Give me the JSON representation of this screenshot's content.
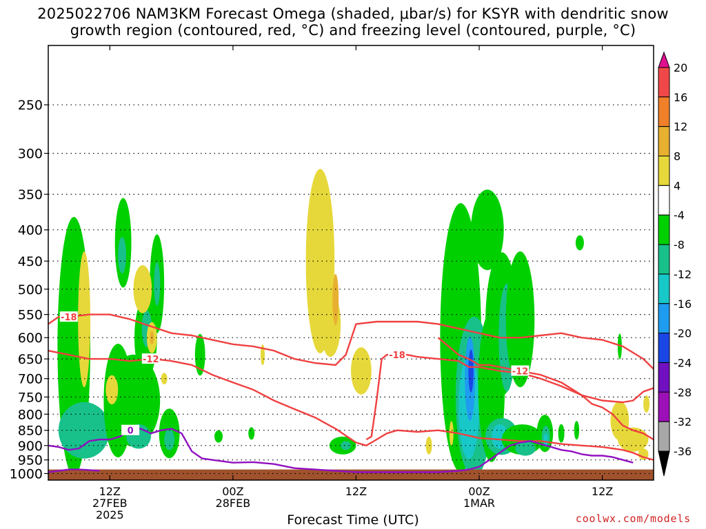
{
  "chart_data": {
    "type": "heatmap",
    "title_line1": "2025022706 NAM3KM Forecast Omega (shaded, μbar/s) for KSYR with dendritic snow",
    "title_line2": "growth region (contoured, red, °C) and freezing level (contoured, purple, °C)",
    "xlabel": "Forecast Time (UTC)",
    "ylabel": "",
    "x_ticks": [
      {
        "hour": 6,
        "lines": [
          "12Z",
          "27FEB",
          "2025"
        ]
      },
      {
        "hour": 18,
        "lines": [
          "00Z",
          "28FEB"
        ]
      },
      {
        "hour": 30,
        "lines": [
          "12Z"
        ]
      },
      {
        "hour": 42,
        "lines": [
          "00Z",
          "1MAR"
        ]
      },
      {
        "hour": 54,
        "lines": [
          "12Z"
        ]
      }
    ],
    "x_range_hours": [
      0,
      59
    ],
    "y_ticks": [
      250,
      300,
      350,
      400,
      450,
      500,
      550,
      600,
      650,
      700,
      750,
      800,
      850,
      900,
      950,
      1000
    ],
    "y_range_hPa": [
      200,
      1025
    ],
    "y_scale": "log-pressure",
    "grid": true,
    "colorbar": {
      "labels": [
        "20",
        "16",
        "12",
        "8",
        "4",
        "-4",
        "-8",
        "-12",
        "-16",
        "-20",
        "-24",
        "-28",
        "-32",
        "-36"
      ],
      "colors": [
        "#e01090",
        "#f04848",
        "#f0802a",
        "#e8b030",
        "#e6d83a",
        "#ffffff",
        "#00d000",
        "#18c08a",
        "#18c8c8",
        "#1e9cf0",
        "#1a46e6",
        "#7010c0",
        "#9c10b8",
        "#a8a8a8",
        "#000000"
      ]
    },
    "omega_blobs": [
      {
        "t": 2.5,
        "p": 620,
        "dt": 1.6,
        "dp": 280,
        "level": 1
      },
      {
        "t": 3.5,
        "p": 850,
        "dt": 2.5,
        "dp": 90,
        "level": 2
      },
      {
        "t": 6.8,
        "p": 760,
        "dt": 1.4,
        "dp": 160,
        "level": 1
      },
      {
        "t": 7.3,
        "p": 420,
        "dt": 0.8,
        "dp": 70,
        "level": 1
      },
      {
        "t": 7.2,
        "p": 440,
        "dt": 0.4,
        "dp": 30,
        "level": 2
      },
      {
        "t": 8.3,
        "p": 760,
        "dt": 2.6,
        "dp": 130,
        "level": 1
      },
      {
        "t": 8.8,
        "p": 870,
        "dt": 1.2,
        "dp": 40,
        "level": 2
      },
      {
        "t": 9.5,
        "p": 600,
        "dt": 1.1,
        "dp": 90,
        "level": 1
      },
      {
        "t": 9.6,
        "p": 580,
        "dt": 0.5,
        "dp": 40,
        "level": 2
      },
      {
        "t": 10.6,
        "p": 490,
        "dt": 0.7,
        "dp": 90,
        "level": 1
      },
      {
        "t": 10.6,
        "p": 490,
        "dt": 0.3,
        "dp": 40,
        "level": 2
      },
      {
        "t": 11.8,
        "p": 860,
        "dt": 1.0,
        "dp": 80,
        "level": 1
      },
      {
        "t": 11.8,
        "p": 880,
        "dt": 0.5,
        "dp": 35,
        "level": 2
      },
      {
        "t": 14.8,
        "p": 640,
        "dt": 0.5,
        "dp": 50,
        "level": 1
      },
      {
        "t": 16.6,
        "p": 870,
        "dt": 0.4,
        "dp": 20,
        "level": 1
      },
      {
        "t": 19.8,
        "p": 860,
        "dt": 0.3,
        "dp": 20,
        "level": 1
      },
      {
        "t": 28.7,
        "p": 900,
        "dt": 1.3,
        "dp": 30,
        "level": 1
      },
      {
        "t": 29.0,
        "p": 900,
        "dt": 0.5,
        "dp": 15,
        "level": 2
      },
      {
        "t": 40.2,
        "p": 600,
        "dt": 2.0,
        "dp": 280,
        "level": 1
      },
      {
        "t": 41.5,
        "p": 750,
        "dt": 1.8,
        "dp": 220,
        "level": 2
      },
      {
        "t": 41.0,
        "p": 780,
        "dt": 1.0,
        "dp": 150,
        "level": 3
      },
      {
        "t": 41.1,
        "p": 700,
        "dt": 0.5,
        "dp": 110,
        "level": 4
      },
      {
        "t": 41.2,
        "p": 680,
        "dt": 0.25,
        "dp": 55,
        "level": 5
      },
      {
        "t": 42.8,
        "p": 400,
        "dt": 1.6,
        "dp": 60,
        "level": 1
      },
      {
        "t": 43.2,
        "p": 720,
        "dt": 1.3,
        "dp": 200,
        "level": 1
      },
      {
        "t": 44.2,
        "p": 570,
        "dt": 1.6,
        "dp": 150,
        "level": 1
      },
      {
        "t": 44.7,
        "p": 600,
        "dt": 0.8,
        "dp": 120,
        "level": 2
      },
      {
        "t": 44.2,
        "p": 870,
        "dt": 1.6,
        "dp": 60,
        "level": 2
      },
      {
        "t": 44.0,
        "p": 870,
        "dt": 0.8,
        "dp": 40,
        "level": 3
      },
      {
        "t": 46.0,
        "p": 560,
        "dt": 1.4,
        "dp": 140,
        "level": 1
      },
      {
        "t": 46.2,
        "p": 880,
        "dt": 2.0,
        "dp": 50,
        "level": 1
      },
      {
        "t": 46.5,
        "p": 910,
        "dt": 1.0,
        "dp": 25,
        "level": 2
      },
      {
        "t": 48.4,
        "p": 860,
        "dt": 0.8,
        "dp": 60,
        "level": 1
      },
      {
        "t": 48.5,
        "p": 870,
        "dt": 0.4,
        "dp": 35,
        "level": 2
      },
      {
        "t": 48.5,
        "p": 880,
        "dt": 0.2,
        "dp": 20,
        "level": 3
      },
      {
        "t": 50.0,
        "p": 860,
        "dt": 0.3,
        "dp": 30,
        "level": 1
      },
      {
        "t": 51.5,
        "p": 850,
        "dt": 0.25,
        "dp": 30,
        "level": 1
      },
      {
        "t": 51.8,
        "p": 420,
        "dt": 0.4,
        "dp": 12,
        "level": 1
      },
      {
        "t": 55.7,
        "p": 620,
        "dt": 0.2,
        "dp": 30,
        "level": 1
      },
      {
        "t": 3.5,
        "p": 560,
        "dt": 0.6,
        "dp": 140,
        "level": -1
      },
      {
        "t": 6.2,
        "p": 730,
        "dt": 0.6,
        "dp": 40,
        "level": -1
      },
      {
        "t": 9.2,
        "p": 500,
        "dt": 0.9,
        "dp": 45,
        "level": -1
      },
      {
        "t": 10.1,
        "p": 600,
        "dt": 0.5,
        "dp": 35,
        "level": -1
      },
      {
        "t": 10.1,
        "p": 600,
        "dt": 0.2,
        "dp": 15,
        "level": -2
      },
      {
        "t": 11.3,
        "p": 700,
        "dt": 0.3,
        "dp": 15,
        "level": -1
      },
      {
        "t": 20.9,
        "p": 640,
        "dt": 0.2,
        "dp": 25,
        "level": -1
      },
      {
        "t": 26.5,
        "p": 450,
        "dt": 1.4,
        "dp": 150,
        "level": -1
      },
      {
        "t": 26.5,
        "p": 400,
        "dt": 0.8,
        "dp": 60,
        "level": -1
      },
      {
        "t": 27.5,
        "p": 570,
        "dt": 1.0,
        "dp": 70,
        "level": -1
      },
      {
        "t": 28.0,
        "p": 520,
        "dt": 0.3,
        "dp": 50,
        "level": -2
      },
      {
        "t": 30.5,
        "p": 680,
        "dt": 1.0,
        "dp": 60,
        "level": -1
      },
      {
        "t": 37.1,
        "p": 900,
        "dt": 0.3,
        "dp": 30,
        "level": -1
      },
      {
        "t": 39.3,
        "p": 860,
        "dt": 0.2,
        "dp": 40,
        "level": -1
      },
      {
        "t": 55.7,
        "p": 820,
        "dt": 0.9,
        "dp": 60,
        "level": -1
      },
      {
        "t": 57.0,
        "p": 880,
        "dt": 1.5,
        "dp": 40,
        "level": -1
      },
      {
        "t": 58.0,
        "p": 930,
        "dt": 0.5,
        "dp": 20,
        "level": -1
      },
      {
        "t": 58.3,
        "p": 770,
        "dt": 0.3,
        "dp": 25,
        "level": -1
      }
    ],
    "isotherm_minus18_upper": {
      "label": "-18",
      "t": [
        0,
        1,
        2,
        4,
        6,
        8,
        10,
        12,
        14,
        16,
        18,
        20,
        22,
        24,
        26,
        28,
        29,
        30,
        32,
        34,
        36,
        38,
        40,
        42,
        44,
        46,
        48,
        50,
        52,
        54,
        56,
        58,
        59
      ],
      "p": [
        570,
        555,
        555,
        550,
        550,
        560,
        575,
        590,
        595,
        605,
        615,
        620,
        630,
        650,
        660,
        665,
        640,
        570,
        565,
        565,
        565,
        570,
        580,
        590,
        600,
        600,
        595,
        590,
        600,
        605,
        620,
        650,
        675
      ]
    },
    "isotherm_minus12": {
      "label": "-12",
      "t": [
        0,
        2,
        4,
        6,
        8,
        10,
        11,
        12,
        14,
        16,
        18,
        20,
        22,
        24,
        26,
        28,
        30,
        31,
        32,
        33,
        34,
        36,
        38,
        40,
        42,
        44,
        46,
        48,
        50,
        52,
        54,
        56,
        57,
        58,
        59
      ],
      "p": [
        630,
        640,
        650,
        650,
        655,
        650,
        652,
        655,
        665,
        690,
        710,
        730,
        760,
        785,
        810,
        845,
        890,
        900,
        880,
        860,
        850,
        855,
        850,
        860,
        875,
        880,
        885,
        885,
        895,
        900,
        905,
        915,
        925,
        940,
        950
      ]
    },
    "isotherm_minus18_lower": {
      "label": "-18",
      "t": [
        31,
        31.5,
        32,
        32.5,
        33,
        34,
        35,
        36,
        38,
        40,
        41,
        42,
        44,
        46,
        48,
        50,
        52,
        54,
        56,
        57,
        58,
        59
      ],
      "p": [
        880,
        870,
        760,
        650,
        640,
        640,
        640,
        645,
        650,
        655,
        670,
        670,
        680,
        685,
        700,
        720,
        745,
        760,
        765,
        760,
        735,
        725
      ]
    },
    "isotherm_minus12_upper_b": {
      "label": "-12",
      "t": [
        38,
        40,
        41,
        42,
        43,
        44,
        46,
        48,
        50,
        52,
        53,
        54,
        55,
        56,
        57,
        58,
        59
      ],
      "p": [
        600,
        640,
        650,
        665,
        665,
        670,
        680,
        690,
        710,
        745,
        770,
        780,
        800,
        835,
        850,
        860,
        880
      ]
    },
    "freezing_level": {
      "label": "0",
      "t": [
        0,
        1,
        2,
        3,
        4,
        5,
        6,
        7,
        8,
        9,
        10,
        11,
        12,
        13,
        14,
        15,
        16,
        18,
        20,
        22,
        24,
        26,
        28,
        30,
        32,
        34,
        36,
        38,
        40,
        41,
        42,
        43,
        44,
        45,
        46,
        47,
        48,
        49,
        50,
        51,
        52,
        53,
        54,
        55,
        56,
        57
      ],
      "p": [
        900,
        905,
        915,
        910,
        885,
        880,
        880,
        870,
        850,
        845,
        860,
        850,
        845,
        860,
        920,
        945,
        950,
        960,
        958,
        965,
        980,
        985,
        990,
        995,
        995,
        995,
        995,
        995,
        990,
        985,
        975,
        950,
        925,
        900,
        890,
        885,
        895,
        905,
        915,
        920,
        930,
        935,
        935,
        940,
        950,
        960
      ]
    },
    "freezing_level_bottom": {
      "label": "",
      "t": [
        0,
        1,
        2,
        3,
        4,
        5
      ],
      "p": [
        995,
        990,
        985,
        985,
        987,
        990
      ]
    },
    "terrain_top_hPa": 985
  },
  "credit": "coolwx.com/models"
}
